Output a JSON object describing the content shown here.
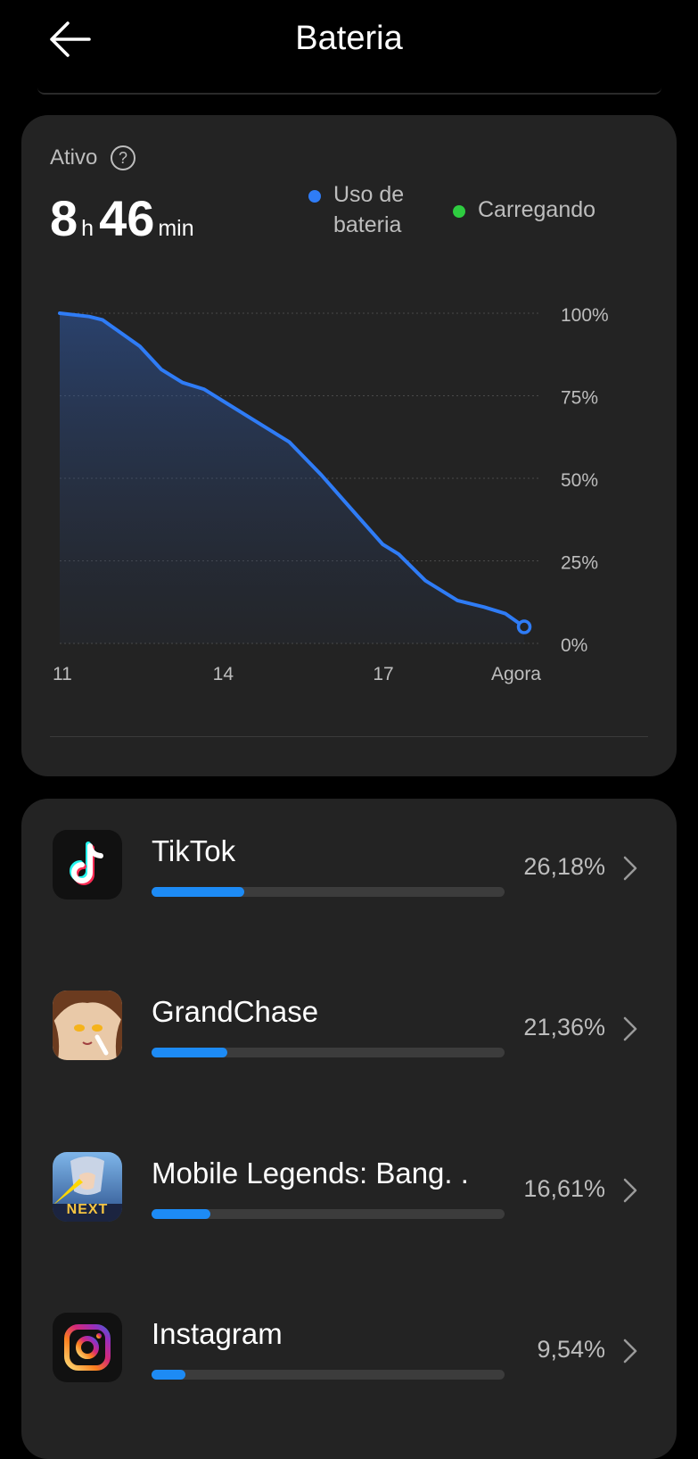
{
  "header": {
    "title": "Bateria",
    "back_icon": "arrow-left-icon"
  },
  "summary": {
    "active_label": "Ativo",
    "help_symbol": "?",
    "hours": "8",
    "hours_unit": "h",
    "minutes": "46",
    "minutes_unit": "min"
  },
  "legend": {
    "usage": {
      "label_line1": "Uso de",
      "label_line2": "bateria",
      "color": "#2f7cf6"
    },
    "charging": {
      "label": "Carregando",
      "color": "#2ecc40"
    }
  },
  "chart_data": {
    "type": "area",
    "x_ticks": [
      "11",
      "14",
      "17",
      "Agora"
    ],
    "y_ticks": [
      "100%",
      "75%",
      "50%",
      "25%",
      "0%"
    ],
    "ylim": [
      0,
      100
    ],
    "xlim": [
      11,
      20
    ],
    "grid": true,
    "series": [
      {
        "x": [
          11,
          11.55,
          11.8,
          12.5,
          12.9,
          13.3,
          13.7,
          14.6,
          15.3,
          15.9,
          16.5,
          17.05,
          17.35,
          17.85,
          18.45,
          18.95,
          19.35,
          19.7
        ],
        "y": [
          100,
          99,
          98,
          90,
          83,
          79,
          77,
          68,
          61,
          51,
          40,
          30,
          27,
          19,
          13,
          11,
          9,
          5
        ]
      }
    ]
  },
  "apps": [
    {
      "name": "TikTok",
      "percent_text": "26,18%",
      "percent": 26.18,
      "icon": "tiktok-icon"
    },
    {
      "name": "GrandChase",
      "percent_text": "21,36%",
      "percent": 21.36,
      "icon": "grandchase-icon"
    },
    {
      "name": "Mobile Legends: Bang. .",
      "percent_text": "16,61%",
      "percent": 16.61,
      "icon": "mobile-legends-icon",
      "icon_text": "NEXT"
    },
    {
      "name": "Instagram",
      "percent_text": "9,54%",
      "percent": 9.54,
      "icon": "instagram-icon"
    }
  ]
}
